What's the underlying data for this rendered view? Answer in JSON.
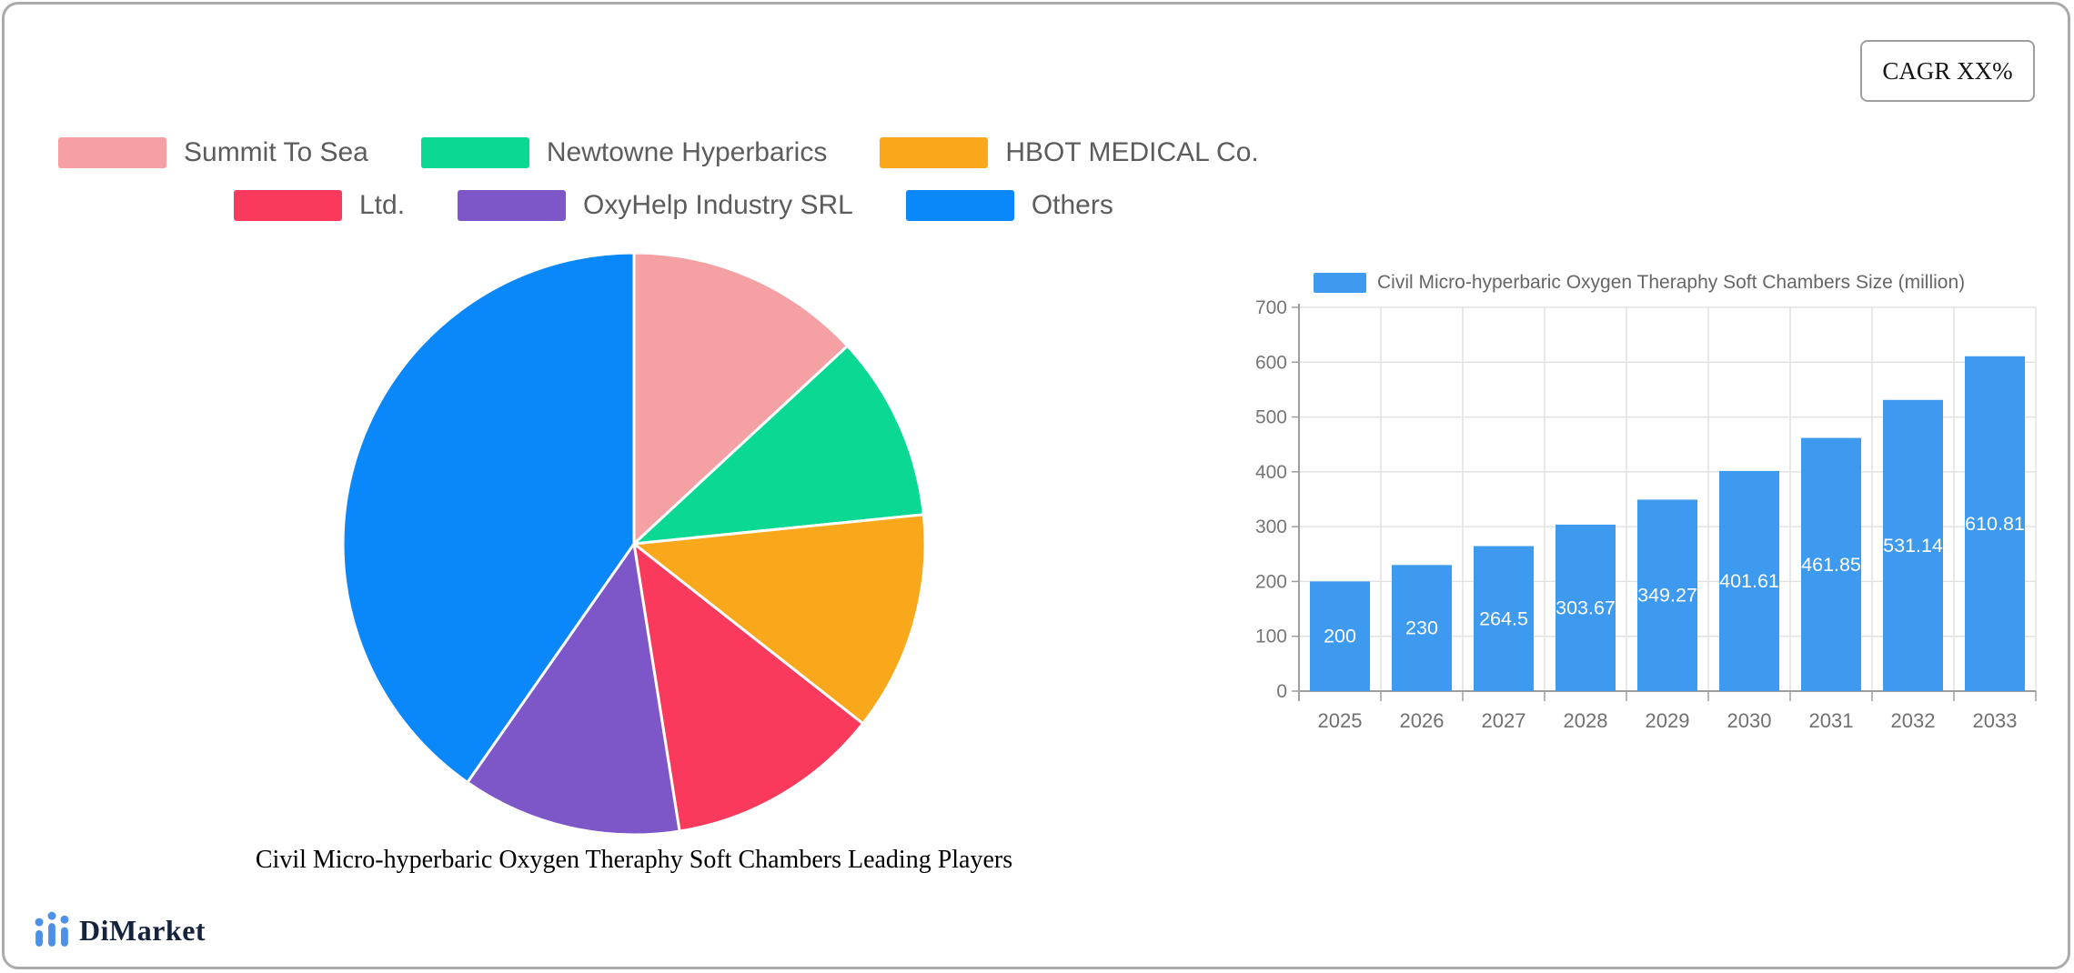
{
  "cagr": {
    "label": "CAGR XX%"
  },
  "pie_legend": {
    "rows": [
      {
        "items": [
          {
            "label": "Summit To Sea",
            "color": "#F5A0A3"
          },
          {
            "label": "Newtowne Hyperbarics",
            "color": "#0BD892"
          },
          {
            "label": "HBOT MEDICAL Co.",
            "color": "#F9A71B"
          }
        ]
      },
      {
        "items": [
          {
            "label": "Ltd.",
            "color": "#FA3A5D"
          },
          {
            "label": "OxyHelp Industry SRL",
            "color": "#7D57C7"
          },
          {
            "label": "Others",
            "color": "#0A87F8"
          }
        ]
      }
    ]
  },
  "chart_data": [
    {
      "type": "pie",
      "title": "Civil Micro-hyperbaric Oxygen Theraphy Soft Chambers Leading Players",
      "legend_position": "top",
      "start_angle_deg": 0,
      "direction": "clockwise",
      "slices": [
        {
          "label": "Summit To Sea",
          "percent": 13.1,
          "color": "#F5A0A3"
        },
        {
          "label": "Newtowne Hyperbarics",
          "percent": 10.3,
          "color": "#0BD892"
        },
        {
          "label": "HBOT MEDICAL Co.",
          "percent": 12.2,
          "color": "#F9A71B"
        },
        {
          "label": "Ltd.",
          "percent": 11.9,
          "color": "#FA3A5D"
        },
        {
          "label": "OxyHelp Industry SRL",
          "percent": 12.2,
          "color": "#7D57C7"
        },
        {
          "label": "Others",
          "percent": 40.3,
          "color": "#0A87F8"
        }
      ]
    },
    {
      "type": "bar",
      "legend_label": "Civil Micro-hyperbaric Oxygen Theraphy Soft Chambers Size (million)",
      "categories": [
        "2025",
        "2026",
        "2027",
        "2028",
        "2029",
        "2030",
        "2031",
        "2032",
        "2033"
      ],
      "values": [
        200,
        230,
        264.5,
        303.67,
        349.27,
        401.61,
        461.85,
        531.14,
        610.81
      ],
      "value_labels": [
        "200",
        "230",
        "264.5",
        "303.67",
        "349.27",
        "401.61",
        "461.85",
        "531.14",
        "610.81"
      ],
      "ylim": [
        0,
        700
      ],
      "ytick_step": 100,
      "ytick_labels": [
        "0",
        "100",
        "200",
        "300",
        "400",
        "500",
        "600",
        "700"
      ],
      "bar_color": "#3E9AEF",
      "grid": true,
      "legend_position": "top"
    }
  ],
  "footer": {
    "brand": "DiMarket"
  }
}
